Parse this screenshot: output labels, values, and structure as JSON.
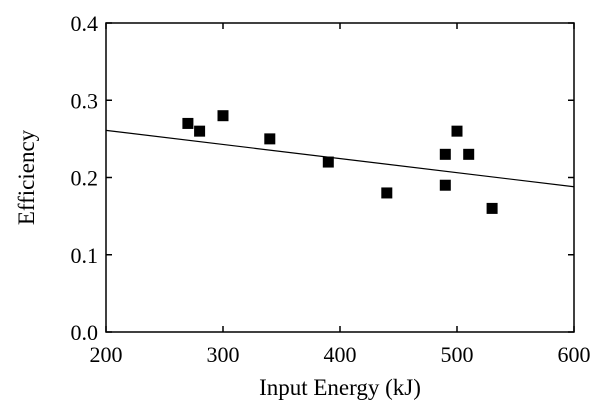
{
  "chart_data": {
    "type": "scatter",
    "title": "",
    "xlabel": "Input Energy (kJ)",
    "ylabel": "Efficiency",
    "xlim": [
      200,
      600
    ],
    "ylim": [
      0.0,
      0.4
    ],
    "xticks": [
      200,
      300,
      400,
      500,
      600
    ],
    "yticks": [
      0.0,
      0.1,
      0.2,
      0.3,
      0.4
    ],
    "xtick_labels": [
      "200",
      "300",
      "400",
      "500",
      "600"
    ],
    "ytick_labels": [
      "0.0",
      "0.1",
      "0.2",
      "0.3",
      "0.4"
    ],
    "grid": false,
    "marker": "square",
    "series": [
      {
        "x": [
          270,
          280,
          300,
          340,
          390,
          440,
          490,
          490,
          500,
          510,
          530
        ],
        "y": [
          0.27,
          0.26,
          0.28,
          0.25,
          0.22,
          0.18,
          0.23,
          0.19,
          0.26,
          0.23,
          0.16
        ]
      }
    ],
    "trend_line": {
      "type": "linear",
      "x": [
        200,
        600
      ],
      "y": [
        0.261,
        0.188
      ]
    }
  }
}
